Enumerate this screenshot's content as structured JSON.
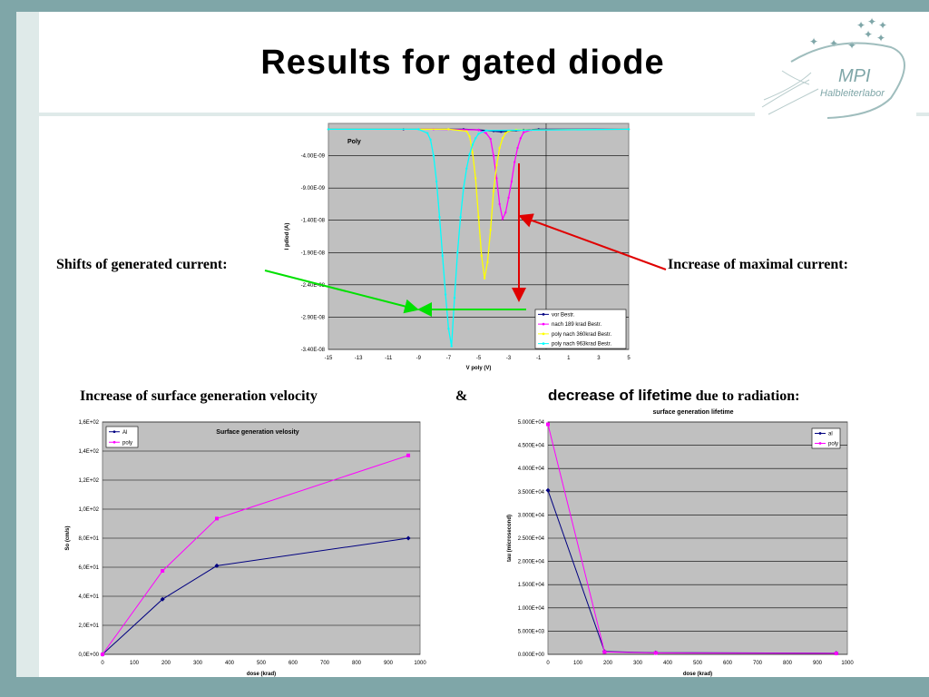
{
  "slide": {
    "title": "Results for gated diode",
    "label_left": "Shifts of generated current:",
    "label_right": "Increase of maximal current:",
    "caption_left": "Increase of surface generation velocity",
    "caption_amp": "&",
    "caption_right_a": "decrease of lifetime",
    "caption_right_b": " due to radiation:"
  },
  "logo": {
    "name": "MPI",
    "sub": "Halbleiterlabor"
  },
  "colors": {
    "background_frame": "#7fa6a8",
    "plot_bg": "#c0c0c0",
    "arrow_green": "#00e000",
    "arrow_red": "#e00000"
  },
  "chart_data": [
    {
      "type": "line",
      "title": "Poly",
      "xlabel": "V poly (V)",
      "ylabel": "I pdiod (A)",
      "xlim": [
        -15,
        5
      ],
      "ylim": [
        -3.4e-08,
        1e-09
      ],
      "xticks": [
        "-15",
        "-13",
        "-11",
        "-9",
        "-7",
        "-5",
        "-3",
        "-1",
        "1",
        "3",
        "5"
      ],
      "yticks": [
        "-4.00E-09",
        "-9.00E-09",
        "-1.40E-08",
        "-1.90E-08",
        "-2.40E-08",
        "-2.90E-08",
        "-3.40E-08"
      ],
      "legend_position": "bottom-right",
      "series": [
        {
          "name": "vor Bestr.",
          "color": "#000080",
          "x": [
            -15,
            -10,
            -6,
            -5,
            -4,
            -3.5,
            -3,
            -2.5,
            -2,
            -1,
            5
          ],
          "y": [
            1e-10,
            1e-10,
            1e-10,
            0,
            -2e-10,
            -3e-10,
            -2e-10,
            -1e-10,
            0,
            1e-10,
            1e-10
          ]
        },
        {
          "name": "nach 189 krad Bestr.",
          "color": "#ff00ff",
          "x": [
            -15,
            -8,
            -5,
            -4.5,
            -4.2,
            -4,
            -3.8,
            -3.6,
            -3.4,
            -3.2,
            -3.0,
            -2.8,
            -2.6,
            -2.4,
            -2.2,
            -2.0,
            -1.5,
            5
          ],
          "y": [
            1e-10,
            1e-10,
            0,
            -5e-10,
            -1.4e-09,
            -4e-09,
            -7.5e-09,
            -1.15e-08,
            -1.38e-08,
            -1.28e-08,
            -1.05e-08,
            -8e-09,
            -5e-09,
            -2.8e-09,
            -1.3e-09,
            -4e-10,
            0,
            1e-10
          ]
        },
        {
          "name": "poly nach 360krad Bestr.",
          "color": "#ffff00",
          "x": [
            -15,
            -7,
            -5.8,
            -5.6,
            -5.4,
            -5.2,
            -5.0,
            -4.8,
            -4.6,
            -4.4,
            -4.2,
            -4.0,
            -3.8,
            -3.6,
            -3.4,
            -3.2,
            -3.0,
            -2.5,
            5
          ],
          "y": [
            1e-10,
            1e-10,
            -2e-10,
            -1e-09,
            -3.5e-09,
            -7.5e-09,
            -1.35e-08,
            -1.95e-08,
            -2.3e-08,
            -2.05e-08,
            -1.55e-08,
            -9.5e-09,
            -5.5e-09,
            -2.8e-09,
            -1.3e-09,
            -5e-10,
            -2e-10,
            0,
            1e-10
          ]
        },
        {
          "name": "poly nach 963krad Bestr.",
          "color": "#00ffff",
          "x": [
            -15,
            -9,
            -8.4,
            -8.2,
            -8.0,
            -7.8,
            -7.6,
            -7.4,
            -7.2,
            -7.0,
            -6.8,
            -6.6,
            -6.4,
            -6.2,
            -6.0,
            -5.8,
            -5.6,
            -5.4,
            -5.2,
            -5.0,
            -4.5,
            5
          ],
          "y": [
            1e-10,
            1e-10,
            -5e-10,
            -1.5e-09,
            -4e-09,
            -8e-09,
            -1.35e-08,
            -1.95e-08,
            -2.55e-08,
            -3.08e-08,
            -3.35e-08,
            -2.6e-08,
            -1.9e-08,
            -1.35e-08,
            -9e-09,
            -6e-09,
            -3.8e-09,
            -2.3e-09,
            -1.3e-09,
            -6e-10,
            -1e-10,
            1e-10
          ]
        }
      ]
    },
    {
      "type": "line",
      "title": "Surface generation velosity",
      "xlabel": "dose (krad)",
      "ylabel": "So (cm/s)",
      "xlim": [
        0,
        1000
      ],
      "ylim": [
        0,
        160
      ],
      "xticks": [
        "0",
        "100",
        "200",
        "300",
        "400",
        "500",
        "600",
        "700",
        "800",
        "900",
        "1000"
      ],
      "yticks": [
        "0,0E+00",
        "2,0E+01",
        "4,0E+01",
        "6,0E+01",
        "8,0E+01",
        "1,0E+02",
        "1,2E+02",
        "1,4E+02",
        "1,6E+02"
      ],
      "legend_position": "top-left",
      "series": [
        {
          "name": "Al",
          "color": "#000080",
          "marker": "diamond",
          "x": [
            0,
            189,
            360,
            963
          ],
          "y": [
            0,
            38,
            61,
            80
          ]
        },
        {
          "name": "poly",
          "color": "#ff00ff",
          "marker": "square",
          "x": [
            0,
            189,
            360,
            963
          ],
          "y": [
            0,
            57.5,
            93.5,
            137
          ]
        }
      ]
    },
    {
      "type": "line",
      "title": "surface generation lifetime",
      "xlabel": "dose (krad)",
      "ylabel": "tau (microsecond)",
      "xlim": [
        0,
        1000
      ],
      "ylim": [
        0,
        50000
      ],
      "xticks": [
        "0",
        "100",
        "200",
        "300",
        "400",
        "500",
        "600",
        "700",
        "800",
        "900",
        "1000"
      ],
      "yticks": [
        "0.000E+00",
        "5.000E+03",
        "1.000E+04",
        "1.500E+04",
        "2.000E+04",
        "2.500E+04",
        "3.000E+04",
        "3.500E+04",
        "4.000E+04",
        "4.500E+04",
        "5.000E+04"
      ],
      "legend_position": "top-right",
      "series": [
        {
          "name": "al",
          "color": "#000080",
          "marker": "diamond",
          "x": [
            0,
            189,
            360,
            963
          ],
          "y": [
            35300,
            600,
            350,
            250
          ]
        },
        {
          "name": "poly",
          "color": "#ff00ff",
          "marker": "square",
          "x": [
            0,
            189,
            360,
            963
          ],
          "y": [
            49500,
            500,
            300,
            200
          ]
        }
      ]
    }
  ]
}
